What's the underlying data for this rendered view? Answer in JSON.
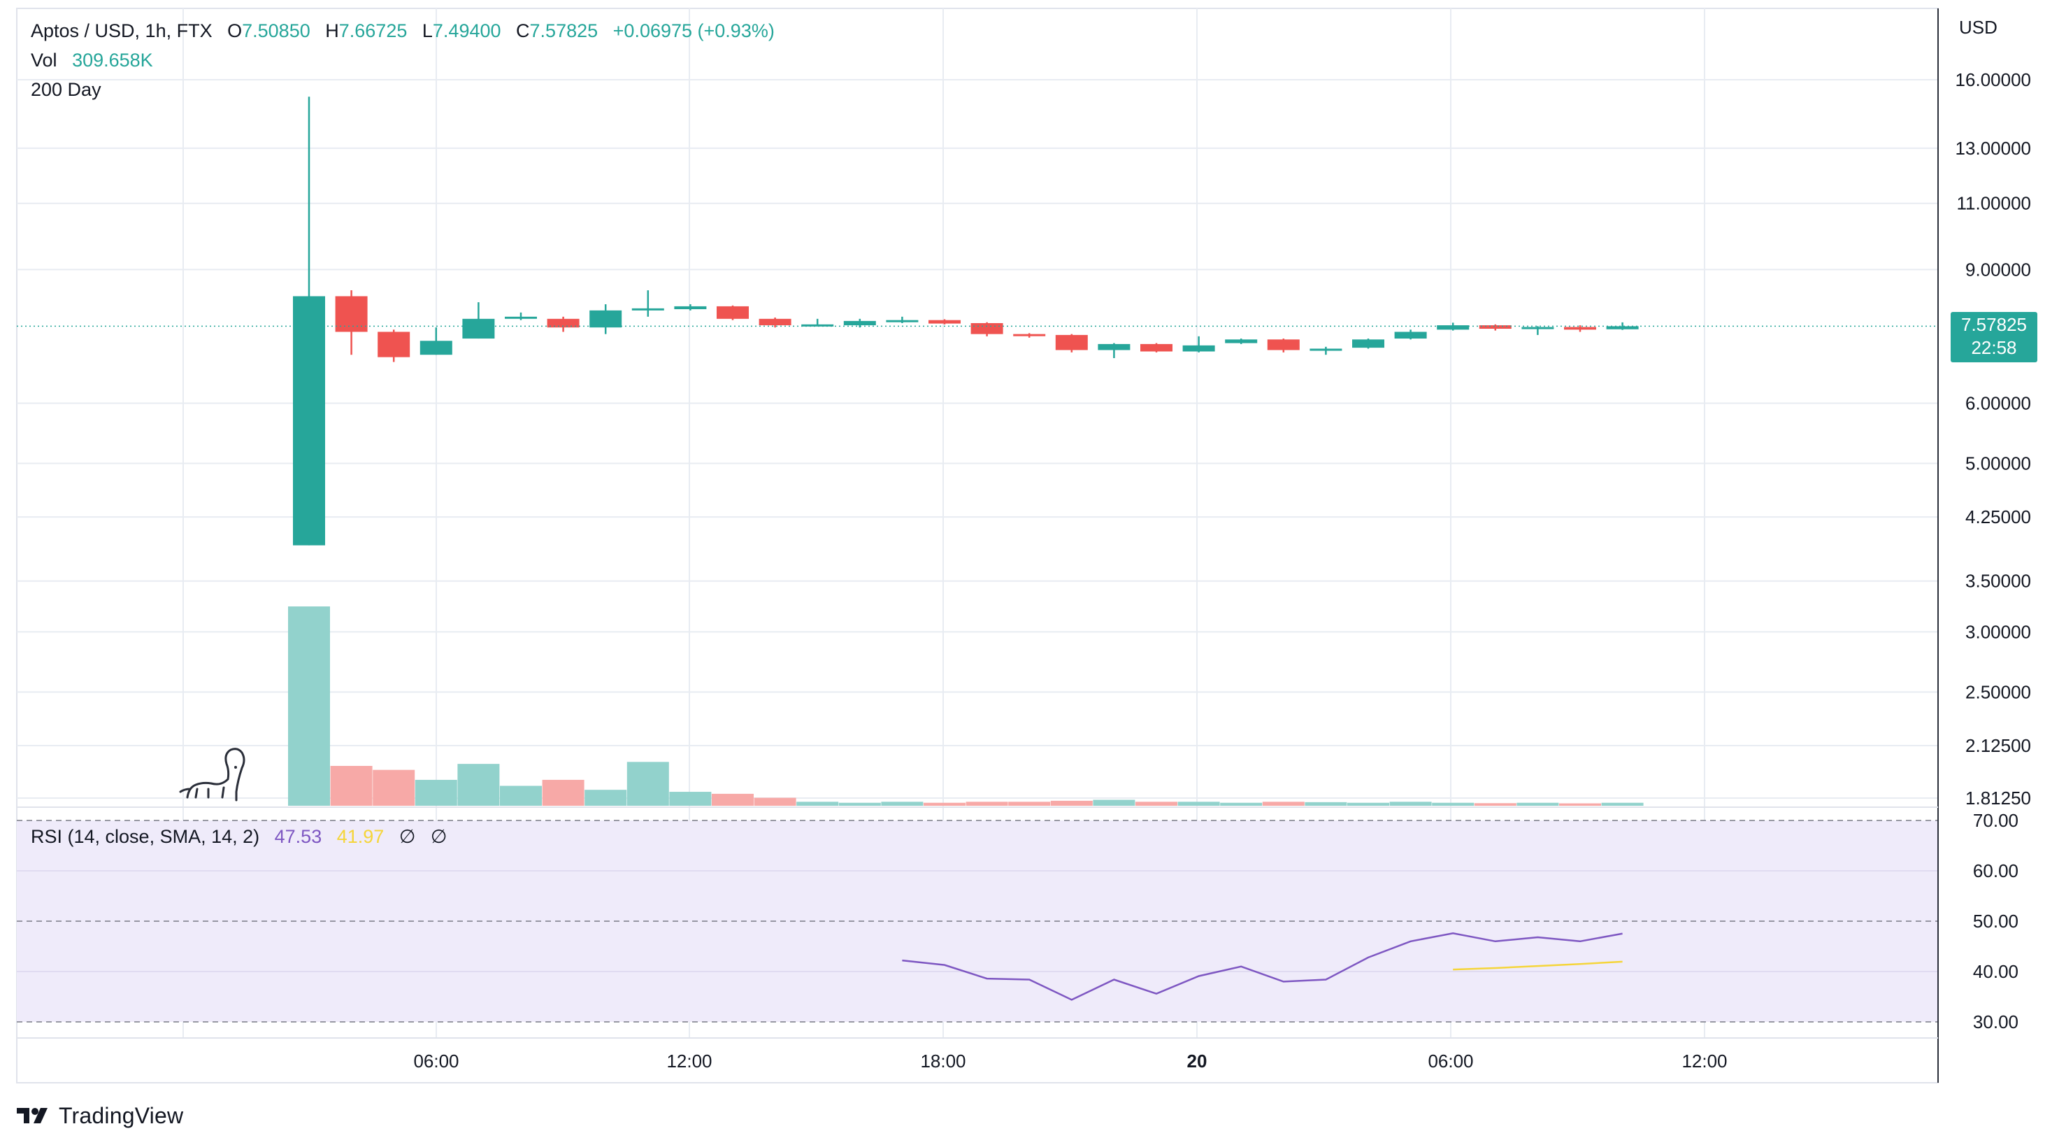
{
  "header": {
    "symbol": "Aptos / USD, 1h, FTX",
    "open_label": "O",
    "open": "7.50850",
    "high_label": "H",
    "high": "7.66725",
    "low_label": "L",
    "low": "7.49400",
    "close_label": "C",
    "close": "7.57825",
    "change": "+0.06975 (+0.93%)",
    "vol_label": "Vol",
    "vol": "309.658K",
    "indicator": "200 Day"
  },
  "rsi_legend": {
    "label": "RSI (14, close, SMA, 14, 2)",
    "rsi": "47.53",
    "sma": "41.97",
    "na1": "∅",
    "na2": "∅"
  },
  "price_axis": {
    "unit": "USD",
    "last_price": "7.57825",
    "countdown": "22:58"
  },
  "brand": {
    "name": "TradingView"
  },
  "colors": {
    "up": "#26a69a",
    "down": "#ef5350",
    "vol_up": "#92d2cc",
    "vol_down": "#f7a9a7",
    "rsi": "#7e57c2",
    "rsi_sma": "#f5d53a",
    "rsi_band": "#efebfa",
    "grid": "#e8ecf2"
  },
  "chart_data": [
    {
      "type": "candlestick",
      "title": "Aptos / USD, 1h, FTX",
      "x_ticks": [
        "06:00",
        "12:00",
        "18:00",
        "20",
        "06:00",
        "12:00"
      ],
      "y_ticks": [
        "16.00000",
        "13.00000",
        "11.00000",
        "9.00000",
        "6.00000",
        "5.00000",
        "4.25000",
        "3.50000",
        "3.00000",
        "2.50000",
        "2.12500",
        "1.81250"
      ],
      "y_scale": "log",
      "candles": [
        {
          "t": "03:00",
          "o": 3.9,
          "h": 15.2,
          "l": 3.9,
          "c": 8.3
        },
        {
          "t": "04:00",
          "o": 8.3,
          "h": 8.45,
          "l": 6.95,
          "c": 7.45
        },
        {
          "t": "05:00",
          "o": 7.45,
          "h": 7.5,
          "l": 6.8,
          "c": 6.9
        },
        {
          "t": "06:00",
          "o": 6.95,
          "h": 7.55,
          "l": 6.95,
          "c": 7.25
        },
        {
          "t": "07:00",
          "o": 7.3,
          "h": 8.15,
          "l": 7.3,
          "c": 7.75
        },
        {
          "t": "08:00",
          "o": 7.8,
          "h": 7.9,
          "l": 7.72,
          "c": 7.8
        },
        {
          "t": "09:00",
          "o": 7.75,
          "h": 7.8,
          "l": 7.45,
          "c": 7.55
        },
        {
          "t": "10:00",
          "o": 7.55,
          "h": 8.1,
          "l": 7.4,
          "c": 7.95
        },
        {
          "t": "11:00",
          "o": 7.98,
          "h": 8.45,
          "l": 7.8,
          "c": 8.0
        },
        {
          "t": "12:00",
          "o": 7.98,
          "h": 8.1,
          "l": 7.95,
          "c": 8.05
        },
        {
          "t": "13:00",
          "o": 8.05,
          "h": 8.07,
          "l": 7.72,
          "c": 7.75
        },
        {
          "t": "14:00",
          "o": 7.75,
          "h": 7.78,
          "l": 7.55,
          "c": 7.6
        },
        {
          "t": "15:00",
          "o": 7.6,
          "h": 7.75,
          "l": 7.58,
          "c": 7.62
        },
        {
          "t": "16:00",
          "o": 7.6,
          "h": 7.75,
          "l": 7.55,
          "c": 7.7
        },
        {
          "t": "17:00",
          "o": 7.7,
          "h": 7.8,
          "l": 7.65,
          "c": 7.72
        },
        {
          "t": "18:00",
          "o": 7.72,
          "h": 7.74,
          "l": 7.62,
          "c": 7.64
        },
        {
          "t": "19:00",
          "o": 7.65,
          "h": 7.67,
          "l": 7.35,
          "c": 7.4
        },
        {
          "t": "20:00",
          "o": 7.4,
          "h": 7.42,
          "l": 7.32,
          "c": 7.38
        },
        {
          "t": "21:00",
          "o": 7.38,
          "h": 7.4,
          "l": 7.0,
          "c": 7.05
        },
        {
          "t": "22:00",
          "o": 7.05,
          "h": 7.2,
          "l": 6.88,
          "c": 7.18
        },
        {
          "t": "23:00",
          "o": 7.18,
          "h": 7.2,
          "l": 7.0,
          "c": 7.02
        },
        {
          "t": "00:00",
          "o": 7.02,
          "h": 7.35,
          "l": 7.0,
          "c": 7.15
        },
        {
          "t": "01:00",
          "o": 7.2,
          "h": 7.3,
          "l": 7.18,
          "c": 7.28
        },
        {
          "t": "02:00",
          "o": 7.28,
          "h": 7.3,
          "l": 7.0,
          "c": 7.05
        },
        {
          "t": "03:00",
          "o": 7.07,
          "h": 7.12,
          "l": 6.95,
          "c": 7.08
        },
        {
          "t": "04:00",
          "o": 7.1,
          "h": 7.3,
          "l": 7.08,
          "c": 7.28
        },
        {
          "t": "05:00",
          "o": 7.3,
          "h": 7.5,
          "l": 7.28,
          "c": 7.45
        },
        {
          "t": "06:00",
          "o": 7.5,
          "h": 7.66,
          "l": 7.48,
          "c": 7.6
        },
        {
          "t": "07:00",
          "o": 7.6,
          "h": 7.62,
          "l": 7.48,
          "c": 7.52
        },
        {
          "t": "08:00",
          "o": 7.52,
          "h": 7.58,
          "l": 7.38,
          "c": 7.56
        },
        {
          "t": "09:00",
          "o": 7.56,
          "h": 7.6,
          "l": 7.45,
          "c": 7.5
        },
        {
          "t": "10:00",
          "o": 7.5085,
          "h": 7.66725,
          "l": 7.494,
          "c": 7.57825
        }
      ]
    },
    {
      "type": "bar",
      "name": "Vol",
      "values_relative": [
        1.0,
        0.2,
        0.18,
        0.13,
        0.21,
        0.1,
        0.13,
        0.08,
        0.22,
        0.07,
        0.06,
        0.04,
        0.02,
        0.015,
        0.02,
        0.015,
        0.02,
        0.02,
        0.025,
        0.03,
        0.02,
        0.02,
        0.015,
        0.02,
        0.018,
        0.015,
        0.02,
        0.015,
        0.013,
        0.015,
        0.012,
        0.015
      ]
    },
    {
      "type": "line",
      "name": "RSI (14, close, SMA, 14, 2)",
      "ylim": [
        30,
        70
      ],
      "y_ticks": [
        "70.00",
        "60.00",
        "50.00",
        "40.00",
        "30.00"
      ],
      "bands": [
        30,
        70
      ],
      "midline": 50,
      "rsi": {
        "start_index": 14,
        "values": [
          42.2,
          41.3,
          38.6,
          38.4,
          34.4,
          38.4,
          35.6,
          39.1,
          41.0,
          38.0,
          38.4,
          42.8,
          46.0,
          47.6,
          46.0,
          46.8,
          46.0,
          47.53
        ]
      },
      "sma": {
        "start_index": 27,
        "values": [
          40.4,
          40.7,
          41.1,
          41.5,
          41.97
        ]
      }
    }
  ]
}
